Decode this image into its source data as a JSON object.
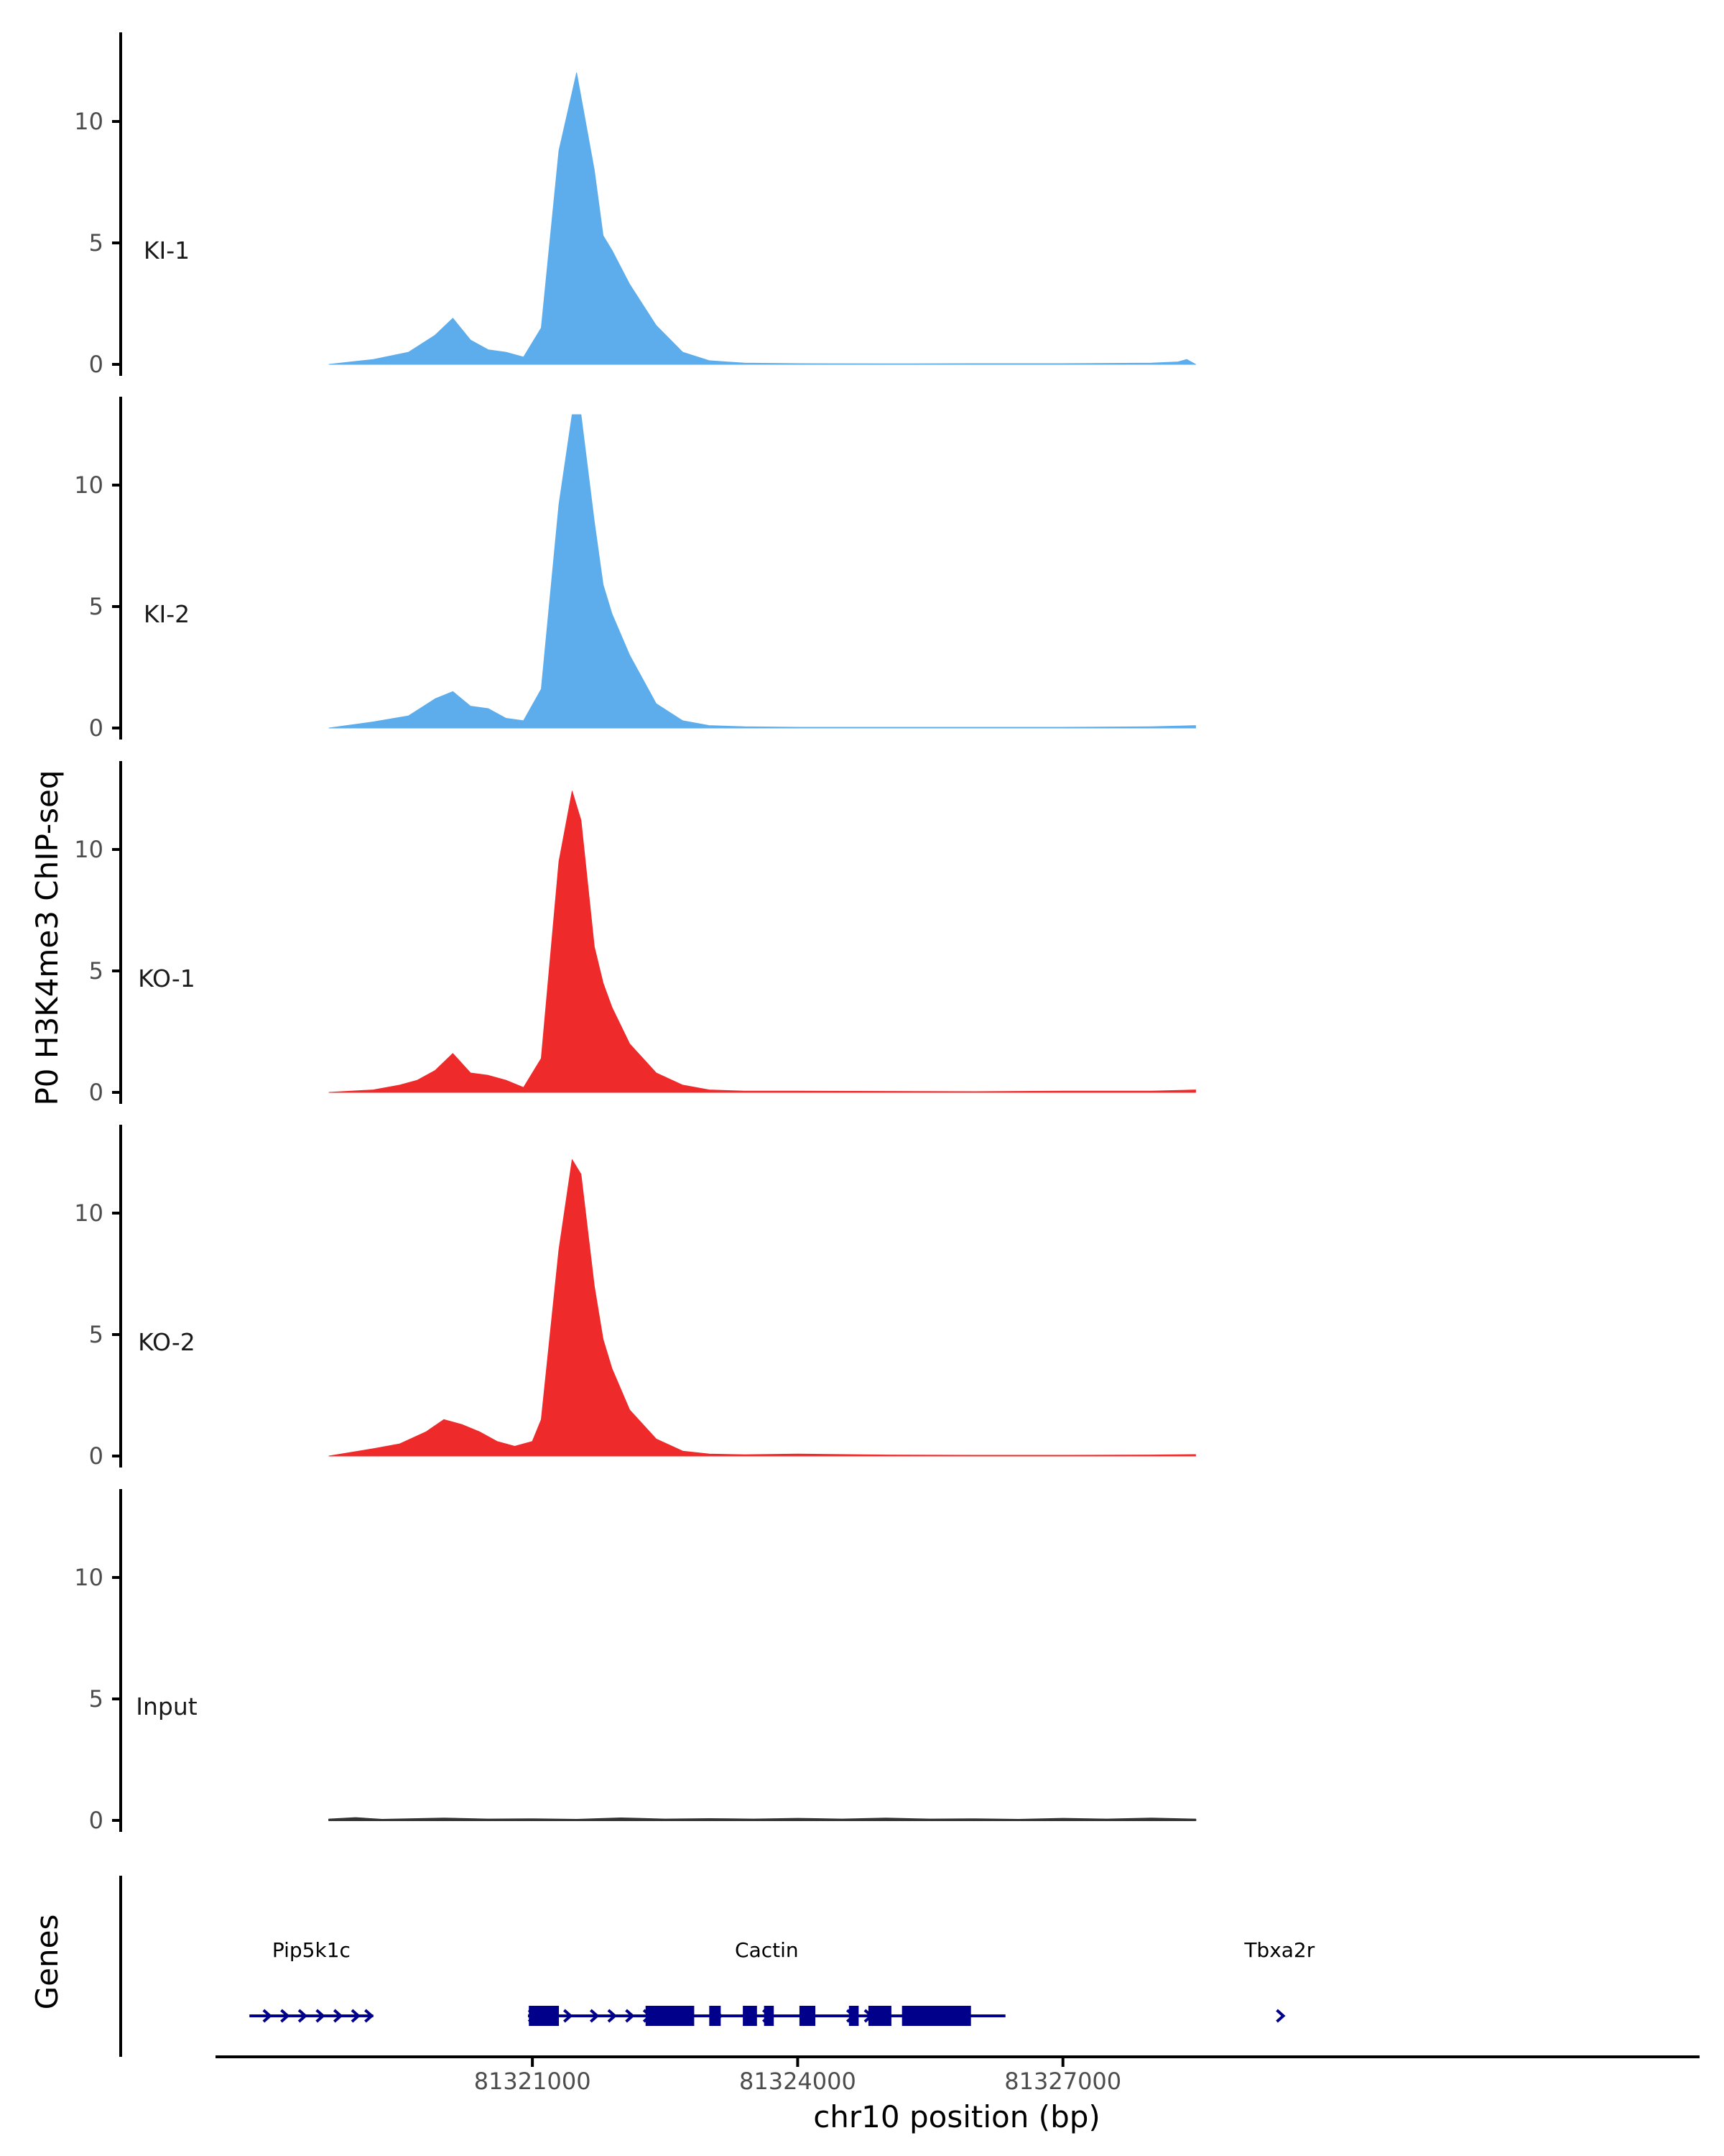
{
  "chart_data": {
    "type": "area",
    "ylabel": "P0 H3K4me3 ChIP-seq",
    "xlabel": "chr10 position (bp)",
    "xlim": [
      81317400,
      81334200
    ],
    "ylim": [
      0,
      13.5
    ],
    "y_ticks": [
      0,
      5,
      10
    ],
    "x_ticks": [
      {
        "value": 81321000,
        "label": "81321000"
      },
      {
        "value": 81324000,
        "label": "81324000"
      },
      {
        "value": 81327000,
        "label": "81327000"
      }
    ],
    "colors": {
      "KI": "#5dadec",
      "KO": "#ee2a2a",
      "Input": "#333333",
      "gene": "#00008b"
    },
    "tracks": [
      {
        "name": "KI-1",
        "color": "#5dadec",
        "x": [
          81318700,
          81319200,
          81319600,
          81319900,
          81320100,
          81320300,
          81320500,
          81320700,
          81320900,
          81321100,
          81321300,
          81321500,
          81321700,
          81321800,
          81321900,
          81322100,
          81322400,
          81322700,
          81323000,
          81323400,
          81324000,
          81325000,
          81326000,
          81327000,
          81328000,
          81328300,
          81328400,
          81328500
        ],
        "values": [
          0.0,
          0.2,
          0.5,
          1.2,
          1.9,
          1.0,
          0.6,
          0.5,
          0.3,
          1.5,
          8.8,
          12.0,
          8.0,
          5.3,
          4.7,
          3.3,
          1.6,
          0.5,
          0.15,
          0.05,
          0.03,
          0.02,
          0.03,
          0.03,
          0.05,
          0.1,
          0.2,
          0.0
        ]
      },
      {
        "name": "KI-2",
        "color": "#5dadec",
        "x": [
          81318700,
          81319200,
          81319600,
          81319900,
          81320100,
          81320300,
          81320500,
          81320700,
          81320900,
          81321100,
          81321300,
          81321450,
          81321550,
          81321700,
          81321800,
          81321900,
          81322100,
          81322400,
          81322700,
          81323000,
          81323400,
          81324000,
          81325000,
          81326000,
          81327000,
          81328000,
          81328500
        ],
        "values": [
          0.0,
          0.25,
          0.5,
          1.2,
          1.5,
          0.9,
          0.8,
          0.4,
          0.3,
          1.6,
          9.2,
          12.9,
          12.9,
          8.5,
          5.9,
          4.7,
          3.0,
          1.0,
          0.3,
          0.1,
          0.05,
          0.03,
          0.03,
          0.03,
          0.03,
          0.05,
          0.1
        ]
      },
      {
        "name": "KO-1",
        "color": "#ee2a2a",
        "x": [
          81318700,
          81319200,
          81319500,
          81319700,
          81319900,
          81320100,
          81320300,
          81320500,
          81320700,
          81320900,
          81321100,
          81321300,
          81321450,
          81321550,
          81321700,
          81321800,
          81321900,
          81322100,
          81322400,
          81322700,
          81323000,
          81323400,
          81324000,
          81325000,
          81326000,
          81327000,
          81328000,
          81328500
        ],
        "values": [
          0.0,
          0.1,
          0.3,
          0.5,
          0.9,
          1.6,
          0.8,
          0.7,
          0.5,
          0.2,
          1.4,
          9.5,
          12.4,
          11.2,
          6.0,
          4.5,
          3.5,
          2.0,
          0.8,
          0.3,
          0.1,
          0.05,
          0.05,
          0.04,
          0.03,
          0.05,
          0.05,
          0.1
        ]
      },
      {
        "name": "KO-2",
        "color": "#ee2a2a",
        "x": [
          81318700,
          81319200,
          81319500,
          81319800,
          81320000,
          81320200,
          81320400,
          81320600,
          81320800,
          81321000,
          81321100,
          81321300,
          81321450,
          81321550,
          81321700,
          81321800,
          81321900,
          81322100,
          81322400,
          81322700,
          81323000,
          81323400,
          81324000,
          81325000,
          81326000,
          81327000,
          81328000,
          81328500
        ],
        "values": [
          0.0,
          0.3,
          0.5,
          1.0,
          1.5,
          1.3,
          1.0,
          0.6,
          0.4,
          0.6,
          1.5,
          8.5,
          12.2,
          11.6,
          7.0,
          4.8,
          3.6,
          1.9,
          0.7,
          0.2,
          0.08,
          0.05,
          0.08,
          0.04,
          0.03,
          0.03,
          0.04,
          0.06
        ]
      },
      {
        "name": "Input",
        "color": "#333333",
        "x": [
          81318700,
          81319000,
          81319300,
          81319600,
          81320000,
          81320500,
          81321000,
          81321500,
          81322000,
          81322500,
          81323000,
          81323500,
          81324000,
          81324500,
          81325000,
          81325500,
          81326000,
          81326500,
          81327000,
          81327500,
          81328000,
          81328500
        ],
        "values": [
          0.04,
          0.1,
          0.03,
          0.05,
          0.08,
          0.04,
          0.05,
          0.03,
          0.09,
          0.04,
          0.06,
          0.04,
          0.07,
          0.04,
          0.08,
          0.04,
          0.05,
          0.03,
          0.07,
          0.04,
          0.08,
          0.04
        ]
      }
    ],
    "genes_panel": {
      "label": "Genes",
      "genes": [
        {
          "name": "Pip5k1c",
          "start": 81317800,
          "end": 81319200,
          "arrows": [
            81318000,
            81318200,
            81318400,
            81318600,
            81318800,
            81319000,
            81319150
          ],
          "exons": []
        },
        {
          "name": "Cactin",
          "start": 81320950,
          "end": 81326350,
          "arrows": [
            81321000,
            81321400,
            81321700,
            81321900,
            81322100,
            81322300,
            81323100,
            81323450,
            81323650,
            81324100,
            81324600,
            81324800
          ],
          "exons": [
            [
              81320960,
              81321300
            ],
            [
              81322280,
              81322830
            ],
            [
              81323000,
              81323130
            ],
            [
              81323380,
              81323540
            ],
            [
              81323620,
              81323730
            ],
            [
              81324020,
              81324200
            ],
            [
              81324580,
              81324690
            ],
            [
              81324800,
              81325060
            ],
            [
              81325180,
              81325960
            ]
          ]
        },
        {
          "name": "Tbxa2r",
          "start": 81329400,
          "end": 81329500,
          "arrows": [
            81329460
          ],
          "exons": []
        }
      ]
    }
  }
}
